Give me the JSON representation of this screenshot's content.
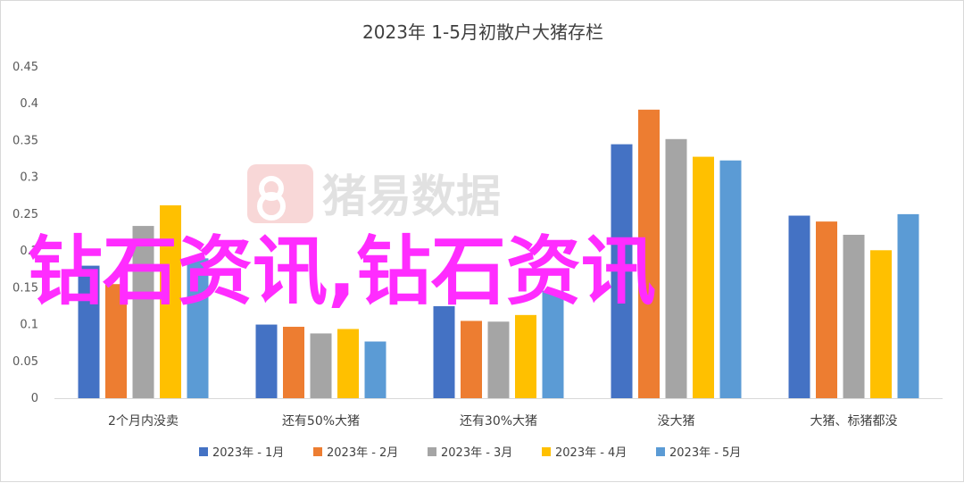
{
  "chart_data": {
    "type": "bar",
    "title": "2023年 1-5月初散户大猪存栏",
    "xlabel": "",
    "ylabel": "",
    "ylim": [
      0,
      0.45
    ],
    "yticks": [
      "0",
      "0.05",
      "0.1",
      "0.15",
      "0.2",
      "0.25",
      "0.3",
      "0.35",
      "0.4",
      "0.45"
    ],
    "grid": false,
    "legend": "bottom",
    "categories": [
      "2个月内没卖",
      "还有50%大猪",
      "还有30%大猪",
      "没大猪",
      "大猪、标猪都没"
    ],
    "series": [
      {
        "name": "2023年 - 1月",
        "color": "#4472c4",
        "values": [
          0.18,
          0.1,
          0.125,
          0.345,
          0.248
        ]
      },
      {
        "name": "2023年 - 2月",
        "color": "#ed7d31",
        "values": [
          0.155,
          0.097,
          0.105,
          0.392,
          0.24
        ]
      },
      {
        "name": "2023年 - 3月",
        "color": "#a5a5a5",
        "values": [
          0.234,
          0.088,
          0.104,
          0.352,
          0.222
        ]
      },
      {
        "name": "2023年 - 4月",
        "color": "#ffc000",
        "values": [
          0.262,
          0.094,
          0.113,
          0.328,
          0.201
        ]
      },
      {
        "name": "2023年 - 5月",
        "color": "#5b9bd5",
        "values": [
          0.19,
          0.077,
          0.146,
          0.323,
          0.25
        ]
      }
    ]
  },
  "watermark": {
    "text": "猪易数据",
    "logo_icon": "pig-logo-icon"
  },
  "overlay": {
    "text": "钻石资讯,钻石资讯",
    "color": "#ff2cff"
  }
}
